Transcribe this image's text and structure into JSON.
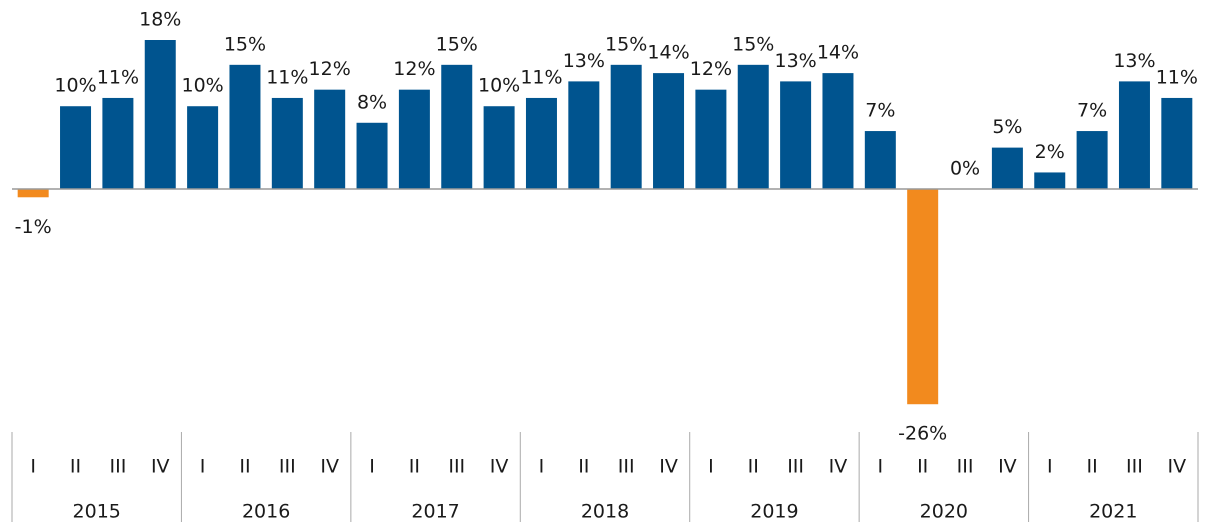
{
  "chart_data": {
    "type": "bar",
    "categories": [
      "I",
      "II",
      "III",
      "IV",
      "I",
      "II",
      "III",
      "IV",
      "I",
      "II",
      "III",
      "IV",
      "I",
      "II",
      "III",
      "IV",
      "I",
      "II",
      "III",
      "IV",
      "I",
      "II",
      "III",
      "IV",
      "I",
      "II",
      "III",
      "IV"
    ],
    "group_labels": [
      "2015",
      "2016",
      "2017",
      "2018",
      "2019",
      "2020",
      "2021"
    ],
    "values": [
      -1,
      10,
      11,
      18,
      10,
      15,
      11,
      12,
      8,
      12,
      15,
      10,
      11,
      13,
      15,
      14,
      12,
      15,
      13,
      14,
      7,
      -26,
      0,
      5,
      2,
      7,
      13,
      11
    ],
    "value_labels": [
      "-1%",
      "10%",
      "11%",
      "18%",
      "10%",
      "15%",
      "11%",
      "12%",
      "8%",
      "12%",
      "15%",
      "10%",
      "11%",
      "13%",
      "15%",
      "14%",
      "12%",
      "15%",
      "13%",
      "14%",
      "7%",
      "-26%",
      "0%",
      "5%",
      "2%",
      "7%",
      "13%",
      "11%"
    ],
    "colors": [
      "#f28a1e",
      "#00548f",
      "#00548f",
      "#00548f",
      "#00548f",
      "#00548f",
      "#00548f",
      "#00548f",
      "#00548f",
      "#00548f",
      "#00548f",
      "#00548f",
      "#00548f",
      "#00548f",
      "#00548f",
      "#00548f",
      "#00548f",
      "#00548f",
      "#00548f",
      "#00548f",
      "#00548f",
      "#f28a1e",
      "#00548f",
      "#00548f",
      "#00548f",
      "#00548f",
      "#00548f",
      "#00548f"
    ]
  }
}
